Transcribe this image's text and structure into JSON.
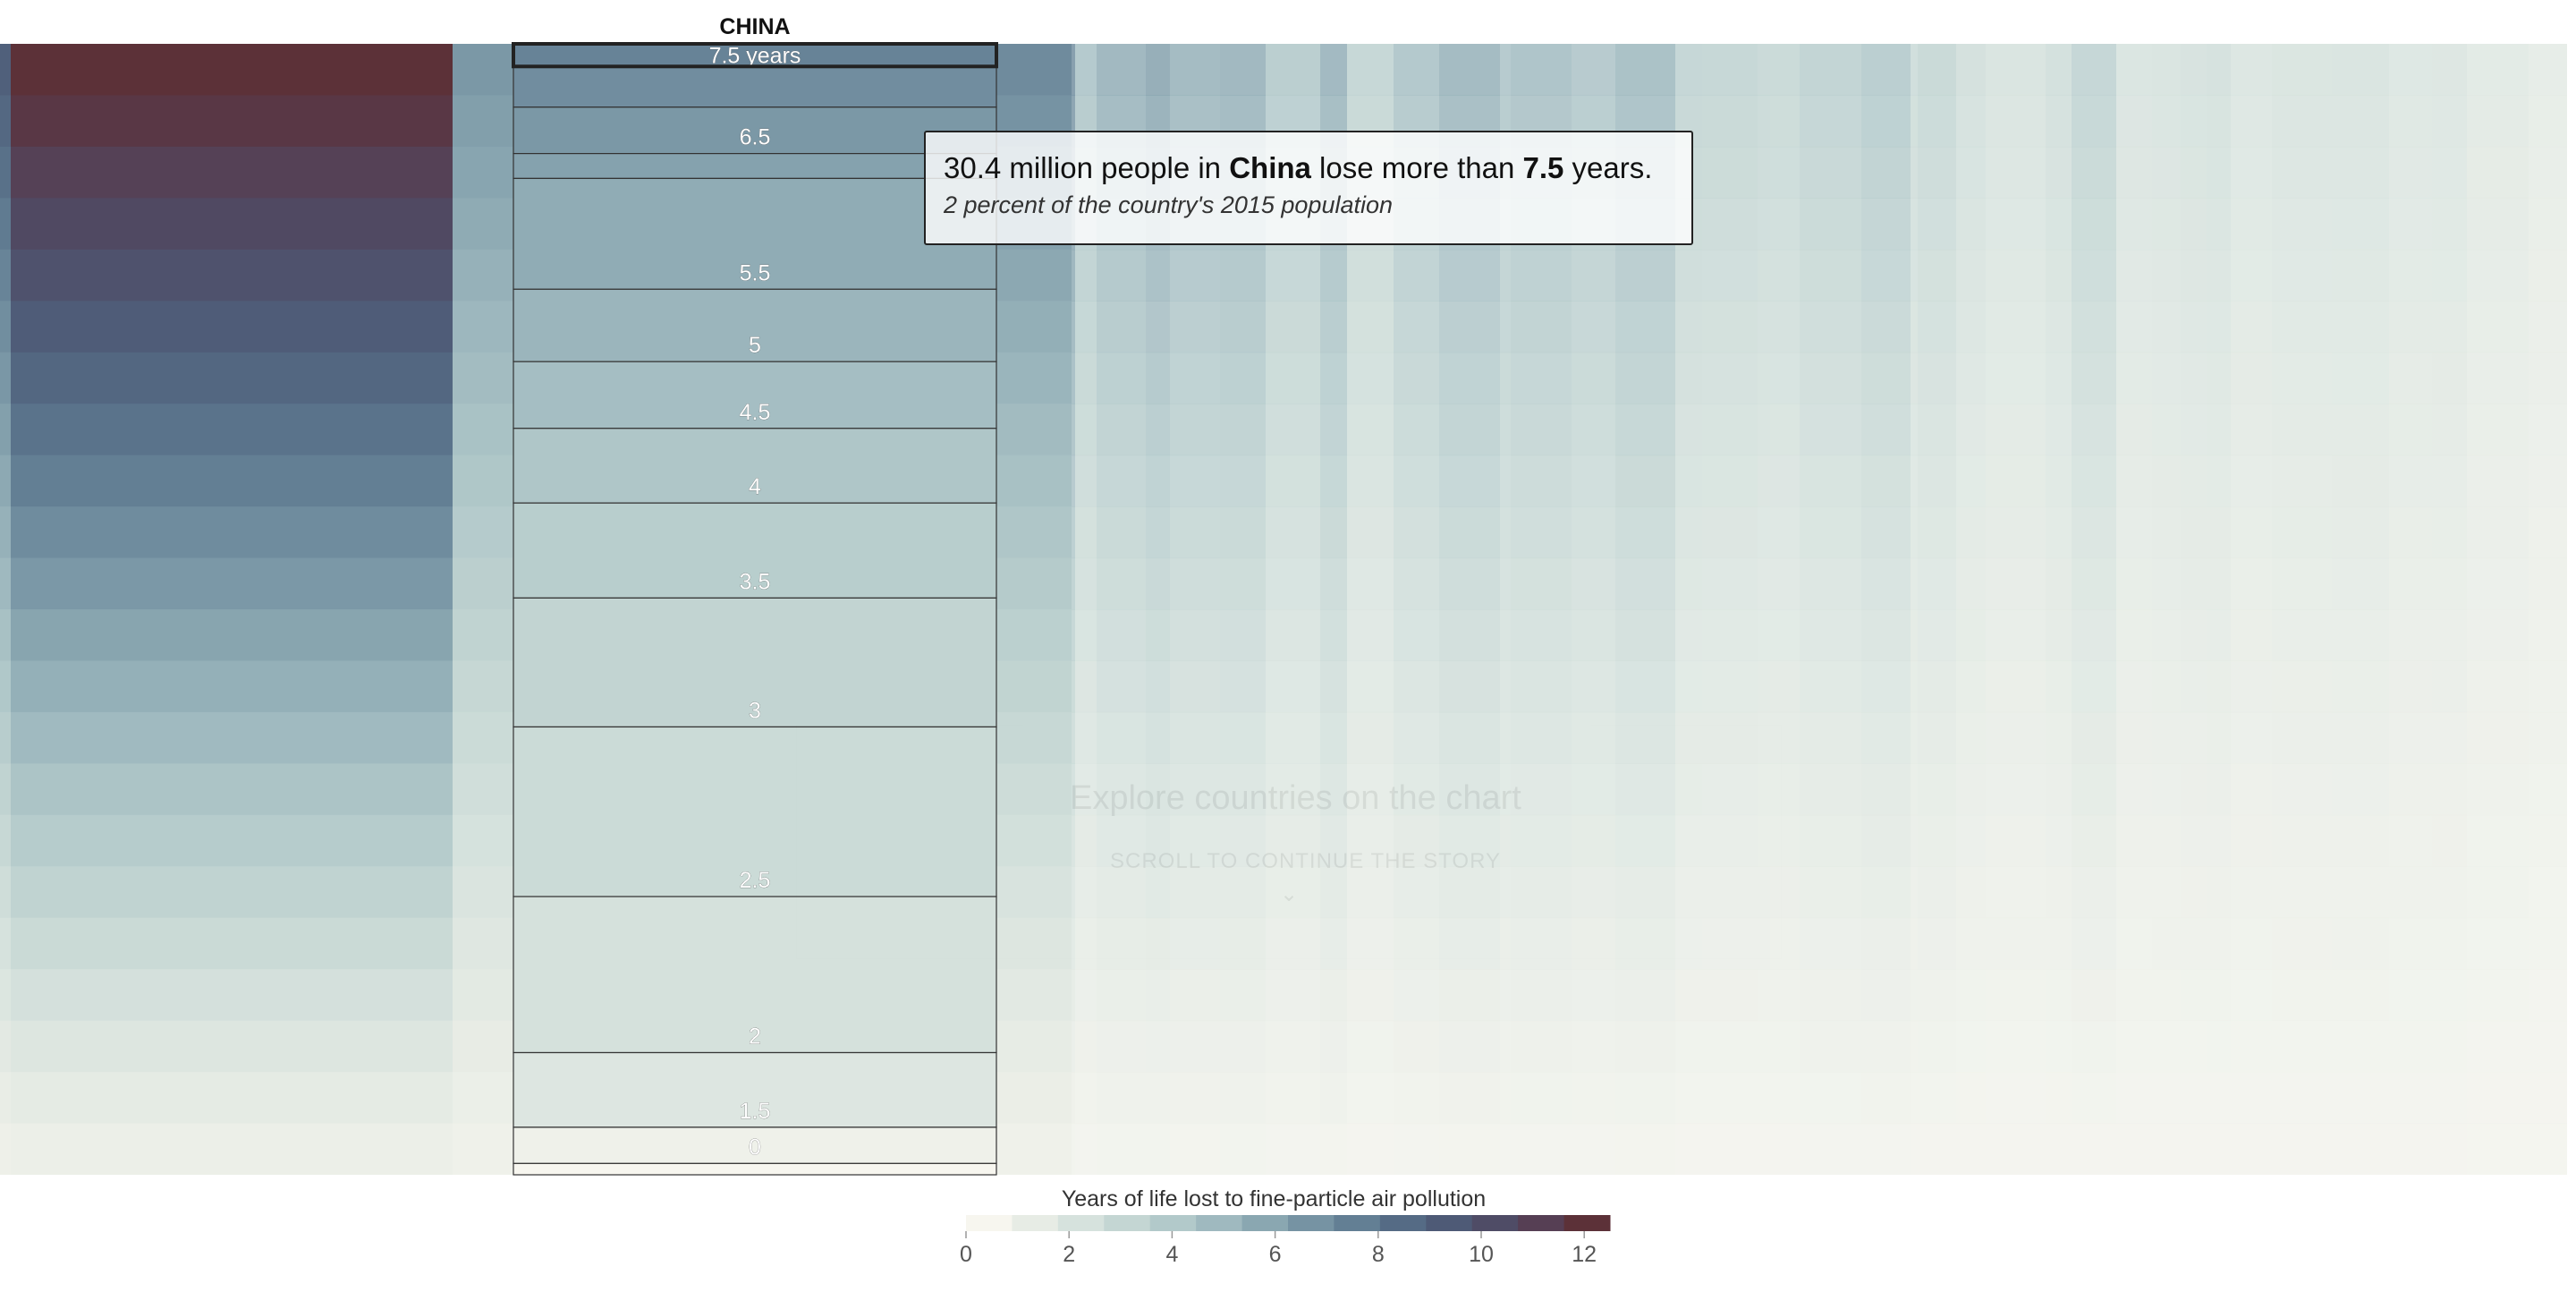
{
  "chart_data": {
    "type": "heatmap",
    "title": "",
    "country_column": {
      "label": "CHINA",
      "top_label": "7.5 years",
      "bands": [
        {
          "years": 7.5,
          "share": 0.02,
          "label": "7.5 years"
        },
        {
          "years": 7,
          "share": 0.036,
          "label": ""
        },
        {
          "years": 6.5,
          "share": 0.041,
          "label": "6.5"
        },
        {
          "years": 6,
          "share": 0.022,
          "label": ""
        },
        {
          "years": 5.5,
          "share": 0.098,
          "label": "5.5"
        },
        {
          "years": 5,
          "share": 0.064,
          "label": "5"
        },
        {
          "years": 4.5,
          "share": 0.059,
          "label": "4.5"
        },
        {
          "years": 4,
          "share": 0.066,
          "label": "4"
        },
        {
          "years": 3.5,
          "share": 0.084,
          "label": "3.5"
        },
        {
          "years": 3,
          "share": 0.114,
          "label": "3"
        },
        {
          "years": 2.5,
          "share": 0.15,
          "label": "2.5"
        },
        {
          "years": 2,
          "share": 0.138,
          "label": "2"
        },
        {
          "years": 1.5,
          "share": 0.066,
          "label": "1.5"
        },
        {
          "years": 0.5,
          "share": 0.032,
          "label": "0"
        },
        {
          "years": 0,
          "share": 0.01,
          "label": ""
        }
      ]
    },
    "legend": {
      "title": "Years of life lost to fine-particle air pollution",
      "min": 0,
      "max": 12.5,
      "ticks": [
        0,
        2,
        4,
        6,
        8,
        10,
        12
      ],
      "colors": [
        "#f7f6ef",
        "#e7ece5",
        "#d6e2dd",
        "#c4d6d3",
        "#b2c9ca",
        "#9fb9bf",
        "#8aa7b1",
        "#7693a3",
        "#637f94",
        "#556b85",
        "#4e5a76",
        "#4f4c66",
        "#563f54",
        "#5c3138"
      ]
    }
  },
  "tooltip": {
    "count": "30.4 million",
    "middle": " people in ",
    "country": "China",
    "lose_text": " lose more than ",
    "years": "7.5",
    "end": " years.",
    "sub": "2 percent of the country's 2015 population"
  },
  "overlay": {
    "title": "Explore countries on the chart",
    "subtitle": "SCROLL TO CONTINUE THE STORY",
    "arrow": "⌄"
  }
}
